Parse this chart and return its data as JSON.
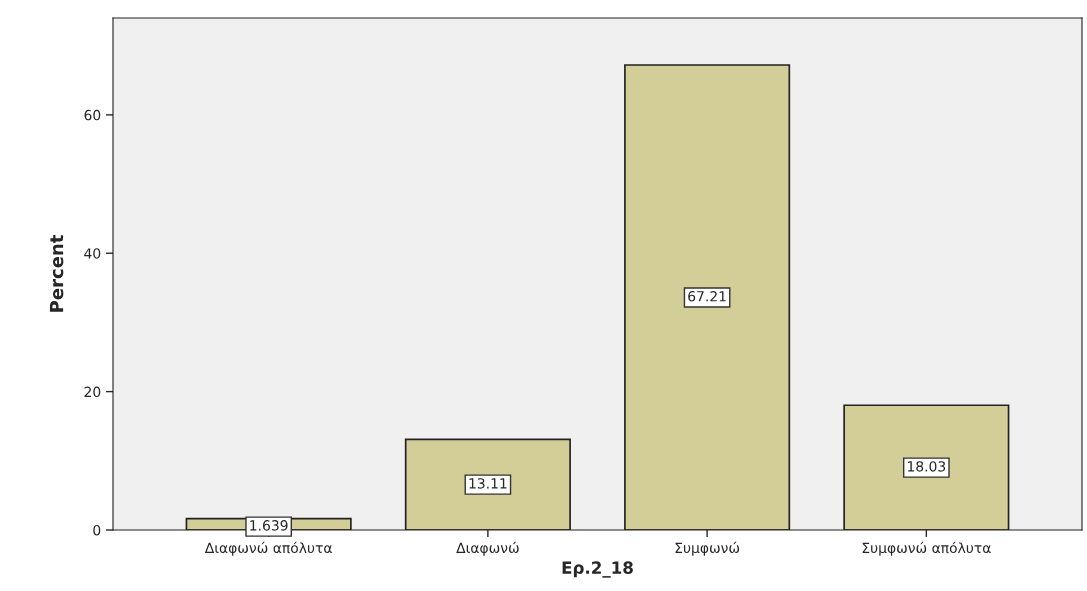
{
  "chart_data": {
    "type": "bar",
    "xlabel": "Ερ.2_18",
    "ylabel": "Percent",
    "categories": [
      "Διαφωνώ απόλυτα",
      "Διαφωνώ",
      "Συμφωνώ",
      "Συμφωνώ απόλυτα"
    ],
    "values": [
      1.639,
      13.11,
      67.21,
      18.03
    ],
    "color": "#d3cd98",
    "ylim": [
      0,
      74
    ],
    "yticks": [
      0,
      20,
      40,
      60
    ],
    "grid": false,
    "data_labels": true
  }
}
